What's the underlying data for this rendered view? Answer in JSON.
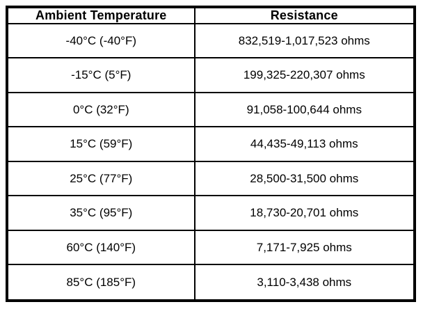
{
  "table": {
    "headers": [
      "Ambient Temperature",
      "Resistance"
    ],
    "rows": [
      {
        "temperature": "-40°C (-40°F)",
        "resistance": "832,519-1,017,523 ohms"
      },
      {
        "temperature": "-15°C (5°F)",
        "resistance": "199,325-220,307 ohms"
      },
      {
        "temperature": "0°C (32°F)",
        "resistance": "91,058-100,644 ohms"
      },
      {
        "temperature": "15°C (59°F)",
        "resistance": "44,435-49,113 ohms"
      },
      {
        "temperature": "25°C (77°F)",
        "resistance": "28,500-31,500 ohms"
      },
      {
        "temperature": "35°C (95°F)",
        "resistance": "18,730-20,701 ohms"
      },
      {
        "temperature": "60°C (140°F)",
        "resistance": "7,171-7,925 ohms"
      },
      {
        "temperature": "85°C (185°F)",
        "resistance": "3,110-3,438 ohms"
      }
    ],
    "colors": {
      "border": "#000000",
      "background": "#ffffff",
      "text": "#000000"
    }
  }
}
